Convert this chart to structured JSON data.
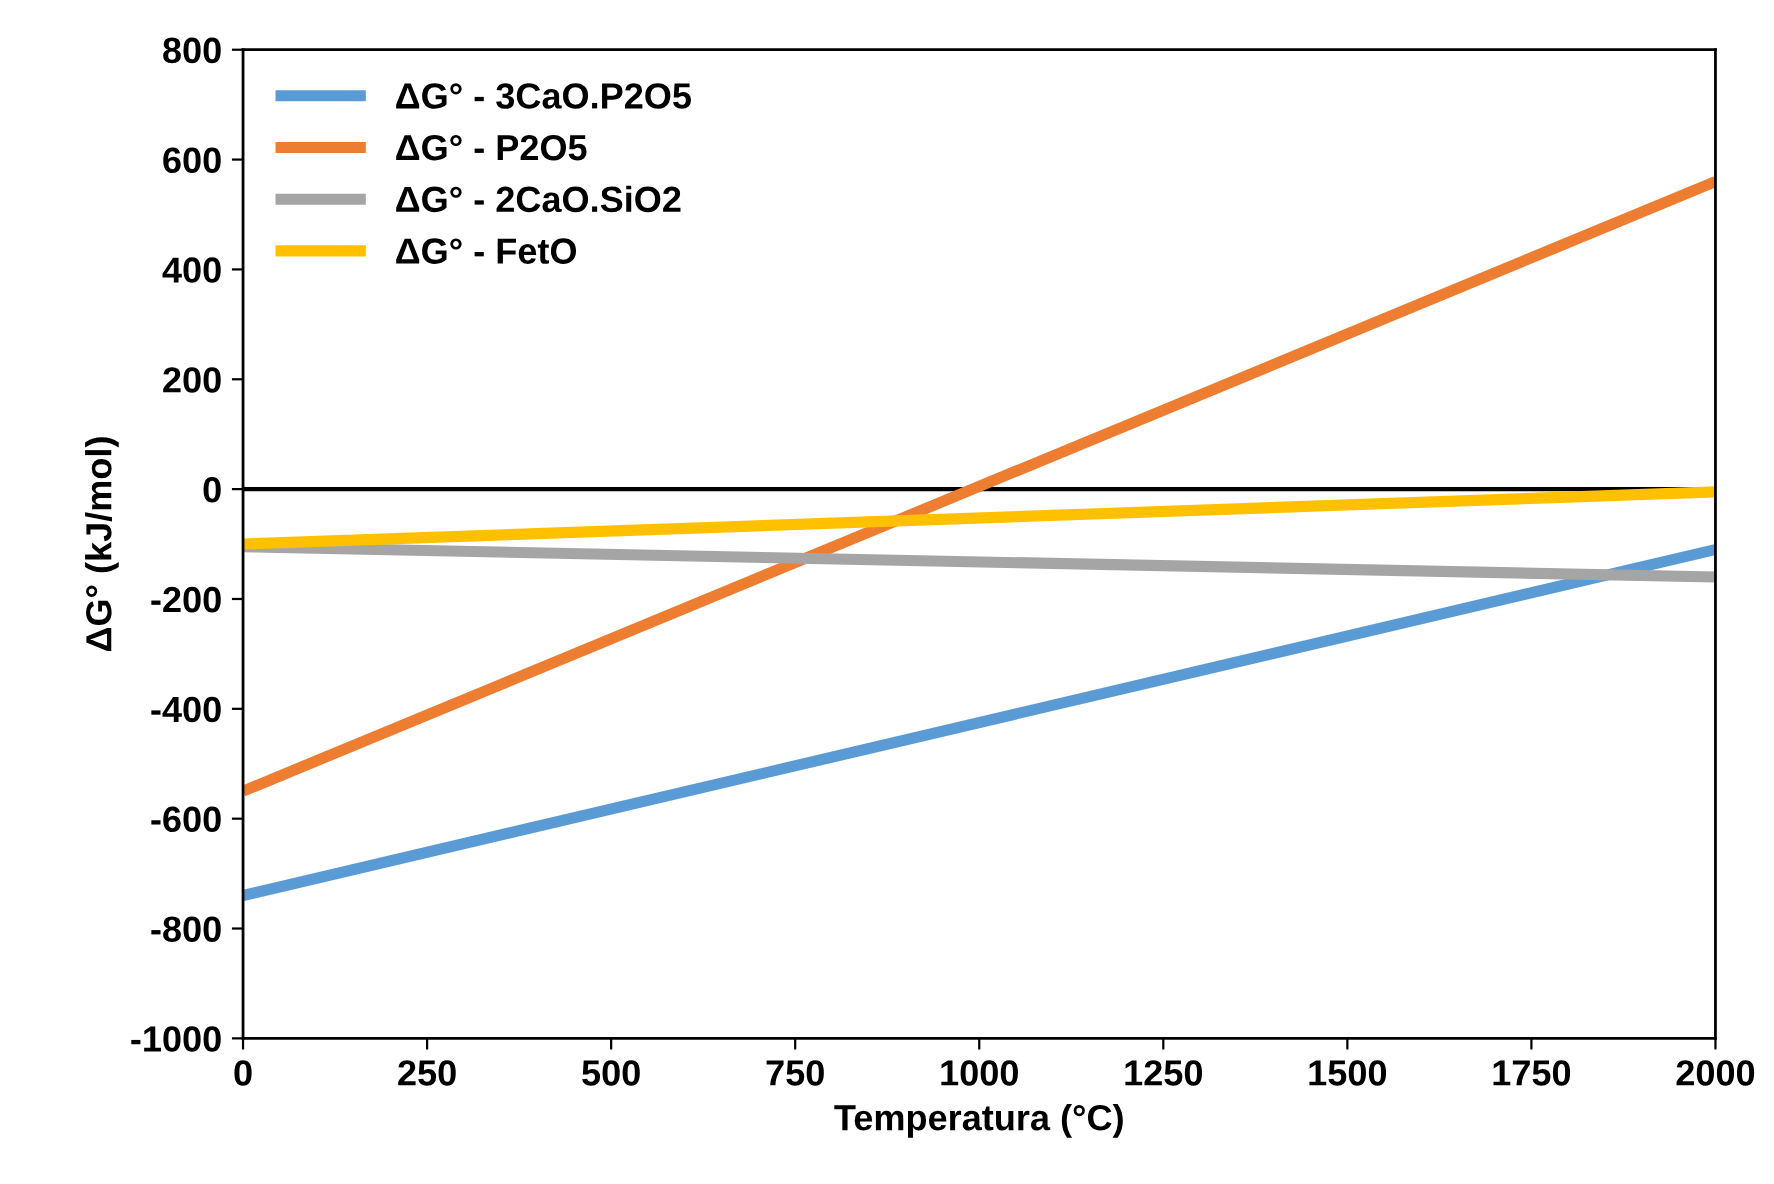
{
  "chart_data": {
    "type": "line",
    "xlabel": "Temperatura (°C)",
    "ylabel": "ΔG° (kJ/mol)",
    "x": [
      0,
      2000
    ],
    "series": [
      {
        "name": "ΔG° - 3CaO.P2O5",
        "color": "#5b9bd5",
        "values": [
          -740,
          -110
        ]
      },
      {
        "name": "ΔG° - P2O5",
        "color": "#ed7d31",
        "values": [
          -550,
          560
        ]
      },
      {
        "name": "ΔG° - 2CaO.SiO2",
        "color": "#a5a5a5",
        "values": [
          -105,
          -160
        ]
      },
      {
        "name": "ΔG° - FetO",
        "color": "#ffc000",
        "values": [
          -100,
          -5
        ]
      }
    ],
    "xlim": [
      0,
      2000
    ],
    "xticks": [
      0,
      250,
      500,
      750,
      1000,
      1250,
      1500,
      1750,
      2000
    ],
    "ylim": [
      -1000,
      800
    ],
    "yticks": [
      -1000,
      -800,
      -600,
      -400,
      -200,
      0,
      200,
      400,
      600,
      800
    ],
    "ref_lines": [
      {
        "axis": "y",
        "value": 0,
        "color": "#000000"
      }
    ],
    "grid": false,
    "legend": "top left",
    "marker": "none",
    "line_style": "solid"
  }
}
